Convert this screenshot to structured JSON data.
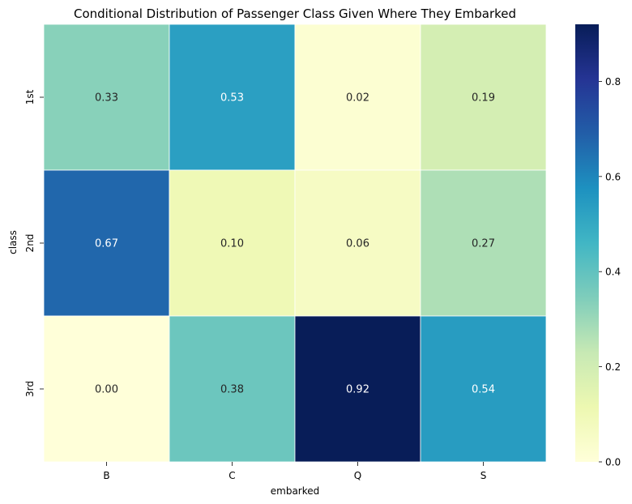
{
  "chart_data": {
    "type": "heatmap",
    "title": "Conditional Distribution of Passenger Class Given Where They Embarked",
    "xlabel": "embarked",
    "ylabel": "class",
    "x_categories": [
      "B",
      "C",
      "Q",
      "S"
    ],
    "y_categories": [
      "1st",
      "2nd",
      "3rd"
    ],
    "values": [
      [
        0.33,
        0.53,
        0.02,
        0.19
      ],
      [
        0.67,
        0.1,
        0.06,
        0.27
      ],
      [
        0.0,
        0.38,
        0.92,
        0.54
      ]
    ],
    "value_format": "2 decimals",
    "colormap": "YlGnBu",
    "colorbar": {
      "range": [
        0.0,
        0.92
      ],
      "ticks": [
        "0.0",
        "0.2",
        "0.4",
        "0.6",
        "0.8"
      ]
    },
    "grid": false
  },
  "colors": {
    "colormap_stops": [
      "#ffffd9",
      "#edf8b1",
      "#c7e9b4",
      "#7fcdbb",
      "#41b6c4",
      "#1d91c0",
      "#225ea8",
      "#253494",
      "#081d58"
    ],
    "cell_divider": "#ffffff",
    "text_dark": "#262626",
    "text_light": "#ffffff"
  }
}
